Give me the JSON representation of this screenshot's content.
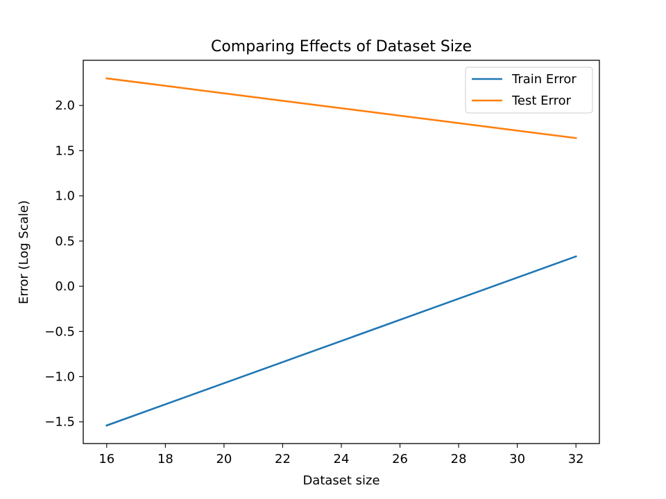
{
  "chart_data": {
    "type": "line",
    "title": "Comparing Effects of Dataset Size",
    "xlabel": "Dataset size",
    "ylabel": "Error (Log Scale)",
    "xlim": [
      15.2,
      32.8
    ],
    "ylim": [
      -1.74,
      2.5
    ],
    "xticks": [
      16,
      18,
      20,
      22,
      24,
      26,
      28,
      30,
      32
    ],
    "xtick_labels": [
      "16",
      "18",
      "20",
      "22",
      "24",
      "26",
      "28",
      "30",
      "32"
    ],
    "yticks": [
      -1.5,
      -1.0,
      -0.5,
      0.0,
      0.5,
      1.0,
      1.5,
      2.0
    ],
    "ytick_labels": [
      "−1.5",
      "−1.0",
      "−0.5",
      "0.0",
      "0.5",
      "1.0",
      "1.5",
      "2.0"
    ],
    "grid": false,
    "legend_position": "top-right",
    "series": [
      {
        "name": "Train Error",
        "color": "#1f77b4",
        "x": [
          16,
          32
        ],
        "y": [
          -1.54,
          0.33
        ]
      },
      {
        "name": "Test Error",
        "color": "#ff7f0e",
        "x": [
          16,
          32
        ],
        "y": [
          2.3,
          1.64
        ]
      }
    ]
  }
}
